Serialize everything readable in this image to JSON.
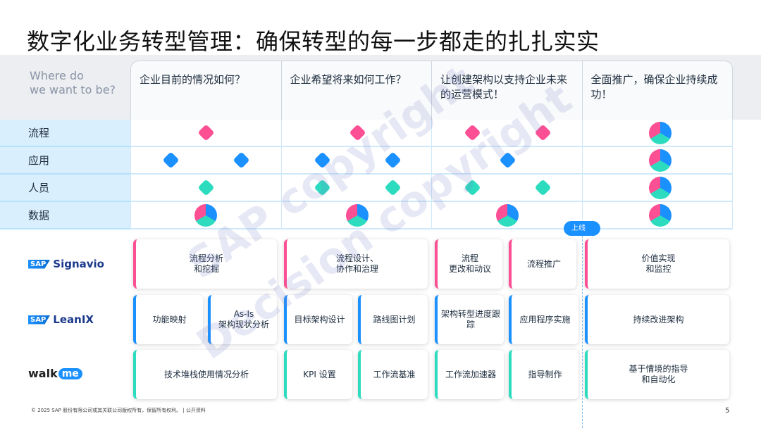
{
  "title": "数字化业务转型管理：确保转型的每一步都走的扎扎实实",
  "header": {
    "where": "Where do\nwe want to be?",
    "columns": [
      "企业目前的情况如何？",
      "企业希望将来如何工作？",
      "让创建架构以支持企业未来的运营模式！",
      "全面推广，确保企业持续成功！"
    ]
  },
  "rows": [
    "流程",
    "应用",
    "人员",
    "数据"
  ],
  "colors": {
    "process": "#fd4f93",
    "application": "#1b90ff",
    "people": "#2ddcbf"
  },
  "tools": {
    "signavio": "Signavio",
    "leanix": "LeanIX",
    "sap": "SAP",
    "walkme_walk": "walk",
    "walkme_me": "me"
  },
  "milestone": "上线",
  "cards": {
    "signavio": [
      "流程分析\n和挖掘",
      "流程设计、\n协作和治理",
      "流程\n更改和动议",
      "流程推广",
      "价值实现\n和监控"
    ],
    "leanix": [
      "功能映射",
      "As-Is\n架构现状分析",
      "目标架构设计",
      "路线图计划",
      "架构转型进度跟踪",
      "应用程序实施",
      "持续改进架构"
    ],
    "walkme": [
      "技术堆栈使用情况分析",
      "KPI 设置",
      "工作流基准",
      "工作流加速器",
      "指导制作",
      "基于情境的指导\n和自动化"
    ]
  },
  "watermarks": [
    "SAP copyright",
    "Decision copyright"
  ],
  "footer": "© 2025 SAP 股份有限公司或其关联公司版权所有，保留所有权利。 | 公开资料",
  "page_number": "5"
}
